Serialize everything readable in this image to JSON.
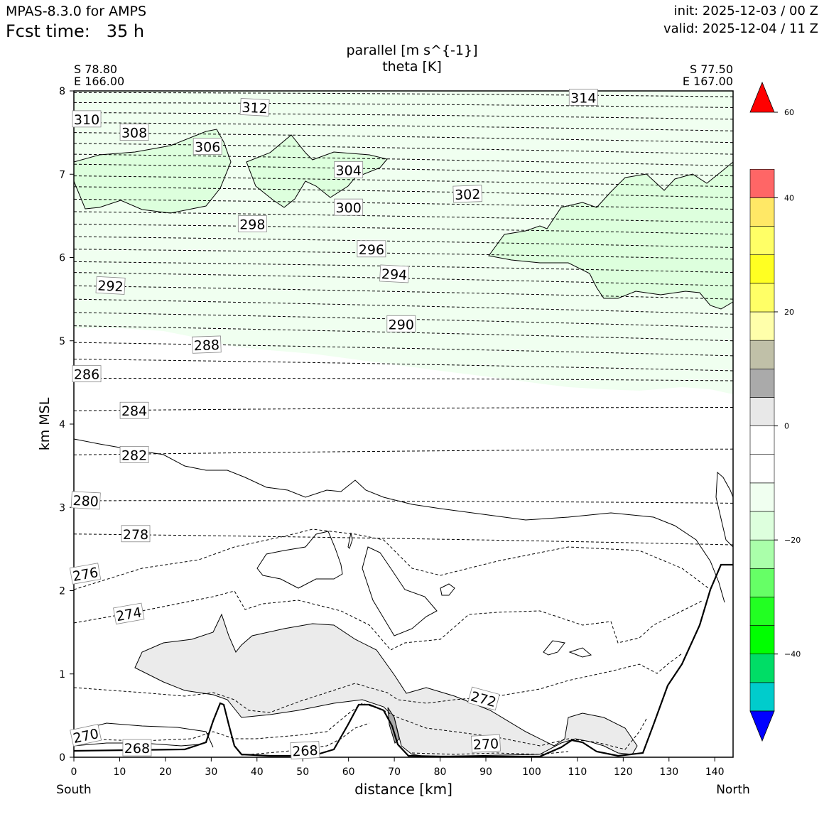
{
  "header": {
    "model": "MPAS-8.3.0 for AMPS",
    "fcst_label": "Fcst time:",
    "fcst_value": "35 h",
    "init": "init: 2025-12-03 / 00 Z",
    "valid": "valid: 2025-12-04 / 11 Z"
  },
  "chart_data": {
    "type": "cross-section",
    "title": "parallel [m s^{-1}]",
    "subtitle": "theta [K]",
    "xlabel": "distance [km]",
    "ylabel": "km MSL",
    "xlim": [
      0,
      144
    ],
    "ylim": [
      0,
      8
    ],
    "xticks": [
      0,
      10,
      20,
      30,
      40,
      50,
      60,
      70,
      80,
      90,
      100,
      110,
      120,
      130,
      140
    ],
    "yticks": [
      0,
      1,
      2,
      3,
      4,
      5,
      6,
      7,
      8
    ],
    "start_label": "South",
    "end_label": "North",
    "start_point": {
      "lat": "S 78.80",
      "lon": "E 166.00"
    },
    "end_point": {
      "lat": "S 77.50",
      "lon": "E 167.00"
    },
    "theta_labels": [
      {
        "value": 314,
        "x": 111.3,
        "y": 7.92,
        "rot": 0
      },
      {
        "value": 312,
        "x": 39.5,
        "y": 7.8,
        "rot": 3
      },
      {
        "value": 310,
        "x": 2.8,
        "y": 7.66,
        "rot": 0
      },
      {
        "value": 308,
        "x": 13.2,
        "y": 7.5,
        "rot": 0
      },
      {
        "value": 306,
        "x": 29.2,
        "y": 7.33,
        "rot": 0
      },
      {
        "value": 304,
        "x": 60.0,
        "y": 7.05,
        "rot": 0
      },
      {
        "value": 302,
        "x": 86.0,
        "y": 6.76,
        "rot": -2
      },
      {
        "value": 300,
        "x": 60.0,
        "y": 6.6,
        "rot": 0
      },
      {
        "value": 298,
        "x": 39.0,
        "y": 6.4,
        "rot": 0
      },
      {
        "value": 296,
        "x": 65.0,
        "y": 6.1,
        "rot": 0
      },
      {
        "value": 294,
        "x": 70.0,
        "y": 5.8,
        "rot": 3
      },
      {
        "value": 292,
        "x": 8.0,
        "y": 5.66,
        "rot": 3
      },
      {
        "value": 290,
        "x": 71.5,
        "y": 5.2,
        "rot": 0
      },
      {
        "value": 288,
        "x": 29.0,
        "y": 4.95,
        "rot": -2
      },
      {
        "value": 286,
        "x": 2.8,
        "y": 4.6,
        "rot": 0
      },
      {
        "value": 284,
        "x": 13.2,
        "y": 4.16,
        "rot": 0
      },
      {
        "value": 282,
        "x": 13.2,
        "y": 3.63,
        "rot": 0
      },
      {
        "value": 280,
        "x": 2.6,
        "y": 3.08,
        "rot": 3
      },
      {
        "value": 278,
        "x": 13.5,
        "y": 2.68,
        "rot": 0
      },
      {
        "value": 276,
        "x": 2.5,
        "y": 2.2,
        "rot": -10
      },
      {
        "value": 274,
        "x": 12.0,
        "y": 1.72,
        "rot": -10
      },
      {
        "value": 272,
        "x": 89.5,
        "y": 0.7,
        "rot": 15
      },
      {
        "value": 270,
        "x": 2.6,
        "y": 0.26,
        "rot": -12
      },
      {
        "value": 270,
        "x": 90.0,
        "y": 0.16,
        "rot": -3
      },
      {
        "value": 268,
        "x": 13.8,
        "y": 0.11,
        "rot": 0
      },
      {
        "value": 268,
        "x": 50.5,
        "y": 0.08,
        "rot": -3
      }
    ],
    "colorbar": {
      "levels": [
        -55,
        -50,
        -45,
        -40,
        -35,
        -30,
        -25,
        -20,
        -15,
        -10,
        -5,
        0,
        5,
        10,
        15,
        20,
        25,
        30,
        35,
        40,
        45,
        50,
        55,
        60
      ],
      "colors": [
        "#0000ff",
        "#00cccc",
        "#00dd66",
        "#00ff00",
        "#22ff22",
        "#66ff66",
        "#aaffaa",
        "#ddffdd",
        "#f0fff0",
        "#ffffff",
        "#ffffff",
        "#e8e8e8",
        "#aaaaaa",
        "#c0c0a8",
        "#ffffaa",
        "#ffff66",
        "#ffff22",
        "#ffff66",
        "#ffe866",
        "#ff6666",
        "#ff0000"
      ],
      "ticks": [
        60,
        40,
        20,
        0,
        -20,
        -40
      ],
      "tick_labels": [
        "60",
        "40",
        "20",
        "0",
        "−20",
        "−40"
      ],
      "extend": "both"
    }
  }
}
